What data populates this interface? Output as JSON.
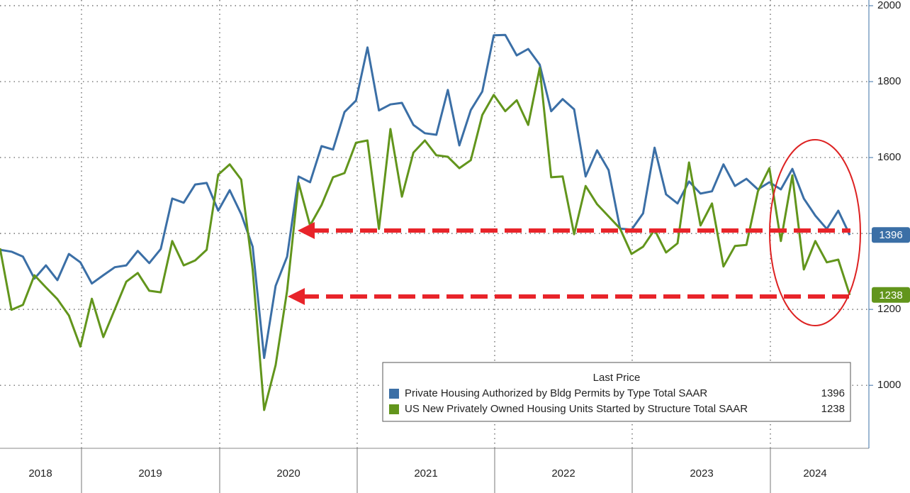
{
  "chart_data": {
    "type": "line",
    "year_labels": [
      "2018",
      "2019",
      "2020",
      "2021",
      "2022",
      "2023",
      "2024"
    ],
    "legend_title": "Last Price",
    "ylim": [
      834,
      2015
    ],
    "yticks": [
      1000,
      1200,
      1400,
      1600,
      1800,
      2000
    ],
    "grid": true,
    "legend": "lower right",
    "series": [
      {
        "name": "Private Housing Authorized by Bldg Permits by Type Total SAAR",
        "color": "#3b6fa6",
        "values": [
          1357,
          1352,
          1339,
          1281,
          1316,
          1277,
          1346,
          1324,
          1268,
          1290,
          1311,
          1316,
          1354,
          1322,
          1359,
          1492,
          1481,
          1529,
          1533,
          1460,
          1514,
          1451,
          1365,
          1072,
          1262,
          1339,
          1550,
          1535,
          1630,
          1621,
          1720,
          1750,
          1890,
          1724,
          1740,
          1744,
          1686,
          1664,
          1660,
          1778,
          1632,
          1725,
          1774,
          1922,
          1923,
          1869,
          1886,
          1845,
          1722,
          1754,
          1727,
          1550,
          1619,
          1567,
          1413,
          1410,
          1453,
          1626,
          1503,
          1479,
          1537,
          1505,
          1511,
          1582,
          1525,
          1544,
          1516,
          1535,
          1516,
          1570,
          1492,
          1447,
          1412,
          1460,
          1396
        ]
      },
      {
        "name": "US New Privately Owned Housing Units Started by Structure Total SAAR",
        "color": "#62951c",
        "values": [
          1361,
          1199,
          1212,
          1290,
          1258,
          1227,
          1184,
          1102,
          1228,
          1127,
          1200,
          1273,
          1296,
          1249,
          1245,
          1380,
          1316,
          1329,
          1357,
          1555,
          1582,
          1542,
          1305,
          935,
          1053,
          1249,
          1533,
          1421,
          1475,
          1548,
          1559,
          1639,
          1645,
          1412,
          1675,
          1497,
          1613,
          1645,
          1606,
          1602,
          1572,
          1593,
          1712,
          1765,
          1722,
          1751,
          1686,
          1836,
          1548,
          1550,
          1398,
          1525,
          1477,
          1445,
          1413,
          1346,
          1365,
          1410,
          1350,
          1374,
          1587,
          1421,
          1479,
          1313,
          1367,
          1370,
          1511,
          1572,
          1380,
          1553,
          1305,
          1380,
          1324,
          1331,
          1238
        ]
      }
    ]
  }
}
